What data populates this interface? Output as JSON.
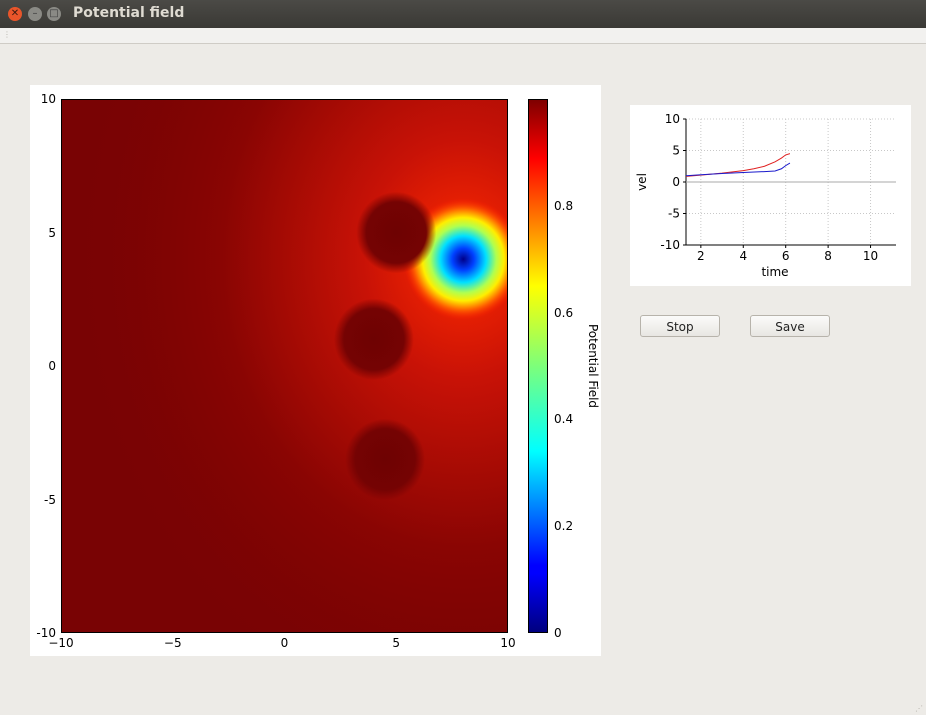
{
  "window": {
    "title": "Potential field"
  },
  "buttons": {
    "stop_label": "Stop",
    "save_label": "Save"
  },
  "colors": {
    "background": "#edebe7",
    "titlebar": "#3c3b37",
    "close_button": "#e9552a"
  },
  "chart_data": [
    {
      "type": "heatmap",
      "title": "",
      "xlim": [
        -10,
        10
      ],
      "ylim": [
        -10,
        10
      ],
      "x_ticks": [
        "−10",
        "−5",
        "0",
        "5",
        "10"
      ],
      "y_ticks": [
        "10",
        "5",
        "0",
        "-5",
        "-10"
      ],
      "colorbar": {
        "label": "Potential Field",
        "range": [
          0,
          1
        ],
        "ticks": [
          "0.8",
          "0.6",
          "0.4",
          "0.2",
          "0"
        ],
        "colormap": "jet"
      },
      "features": [
        {
          "kind": "minimum",
          "x": 8,
          "y": 4,
          "value": 0.0
        },
        {
          "kind": "obstacle",
          "x": 5,
          "y": 5,
          "value": 0.97
        },
        {
          "kind": "obstacle",
          "x": 4,
          "y": 1,
          "value": 0.97
        },
        {
          "kind": "obstacle",
          "x": 4.5,
          "y": -3.5,
          "value": 0.97
        }
      ]
    },
    {
      "type": "line",
      "xlabel": "time",
      "ylabel": "vel",
      "xlim": [
        1.3,
        11.2
      ],
      "ylim": [
        -10,
        10
      ],
      "x_ticks": [
        "2",
        "4",
        "6",
        "8",
        "10"
      ],
      "y_ticks": [
        "10",
        "5",
        "0",
        "-5",
        "-10"
      ],
      "grid": true,
      "series": [
        {
          "color": "#e02020",
          "x": [
            1.3,
            2,
            3,
            4,
            4.5,
            5,
            5.5,
            5.8,
            6.0,
            6.2
          ],
          "y": [
            0.9,
            1.1,
            1.4,
            1.8,
            2.1,
            2.5,
            3.2,
            3.8,
            4.3,
            4.5
          ]
        },
        {
          "color": "#1a1acc",
          "x": [
            1.3,
            2,
            3,
            4,
            5,
            5.5,
            5.8,
            6.0,
            6.2
          ],
          "y": [
            1.0,
            1.15,
            1.35,
            1.5,
            1.65,
            1.75,
            2.1,
            2.6,
            3.0
          ]
        },
        {
          "color": "#aaaaaa",
          "x": [
            1.3,
            11.2
          ],
          "y": [
            0,
            0
          ]
        }
      ]
    }
  ]
}
